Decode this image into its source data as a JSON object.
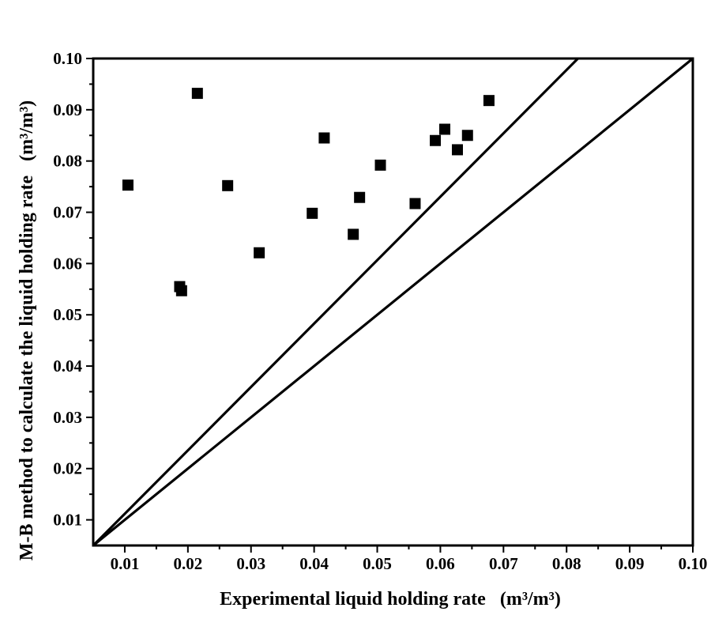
{
  "chart_data": {
    "type": "scatter",
    "xlabel": "Experimental liquid holding rate",
    "xlabel_unit": "(m³/m³)",
    "ylabel": "M-B method to calculate the liquid holding rate",
    "ylabel_unit": "(m³/m³)",
    "xlim": [
      0.005,
      0.1
    ],
    "ylim": [
      0.005,
      0.1
    ],
    "x_ticks": [
      0.01,
      0.02,
      0.03,
      0.04,
      0.05,
      0.06,
      0.07,
      0.08,
      0.09,
      0.1
    ],
    "x_tick_labels": [
      "0.01",
      "0.02",
      "0.03",
      "0.04",
      "0.05",
      "0.06",
      "0.07",
      "0.08",
      "0.09",
      "0.10"
    ],
    "y_ticks": [
      0.01,
      0.02,
      0.03,
      0.04,
      0.05,
      0.06,
      0.07,
      0.08,
      0.09,
      0.1
    ],
    "y_tick_labels": [
      "0.01",
      "0.02",
      "0.03",
      "0.04",
      "0.05",
      "0.06",
      "0.07",
      "0.08",
      "0.09",
      "0.10"
    ],
    "grid": false,
    "legend": "none",
    "marker": "square",
    "color": "#000000",
    "reference_lines": [
      {
        "name": "upper-reference-line",
        "points": [
          [
            0.005,
            0.005
          ],
          [
            0.0818,
            0.1
          ]
        ]
      },
      {
        "name": "lower-reference-line",
        "points": [
          [
            0.005,
            0.005
          ],
          [
            0.1,
            0.1
          ]
        ]
      }
    ],
    "series": [
      {
        "name": "M-B method",
        "x": [
          0.0105,
          0.0187,
          0.019,
          0.0215,
          0.0263,
          0.0313,
          0.0397,
          0.0416,
          0.0462,
          0.0472,
          0.0505,
          0.056,
          0.0592,
          0.0607,
          0.0627,
          0.0643,
          0.0677
        ],
        "y": [
          0.0753,
          0.0555,
          0.0547,
          0.0932,
          0.0752,
          0.0621,
          0.0698,
          0.0845,
          0.0657,
          0.0729,
          0.0792,
          0.0717,
          0.084,
          0.0862,
          0.0822,
          0.085,
          0.0918
        ]
      }
    ]
  }
}
